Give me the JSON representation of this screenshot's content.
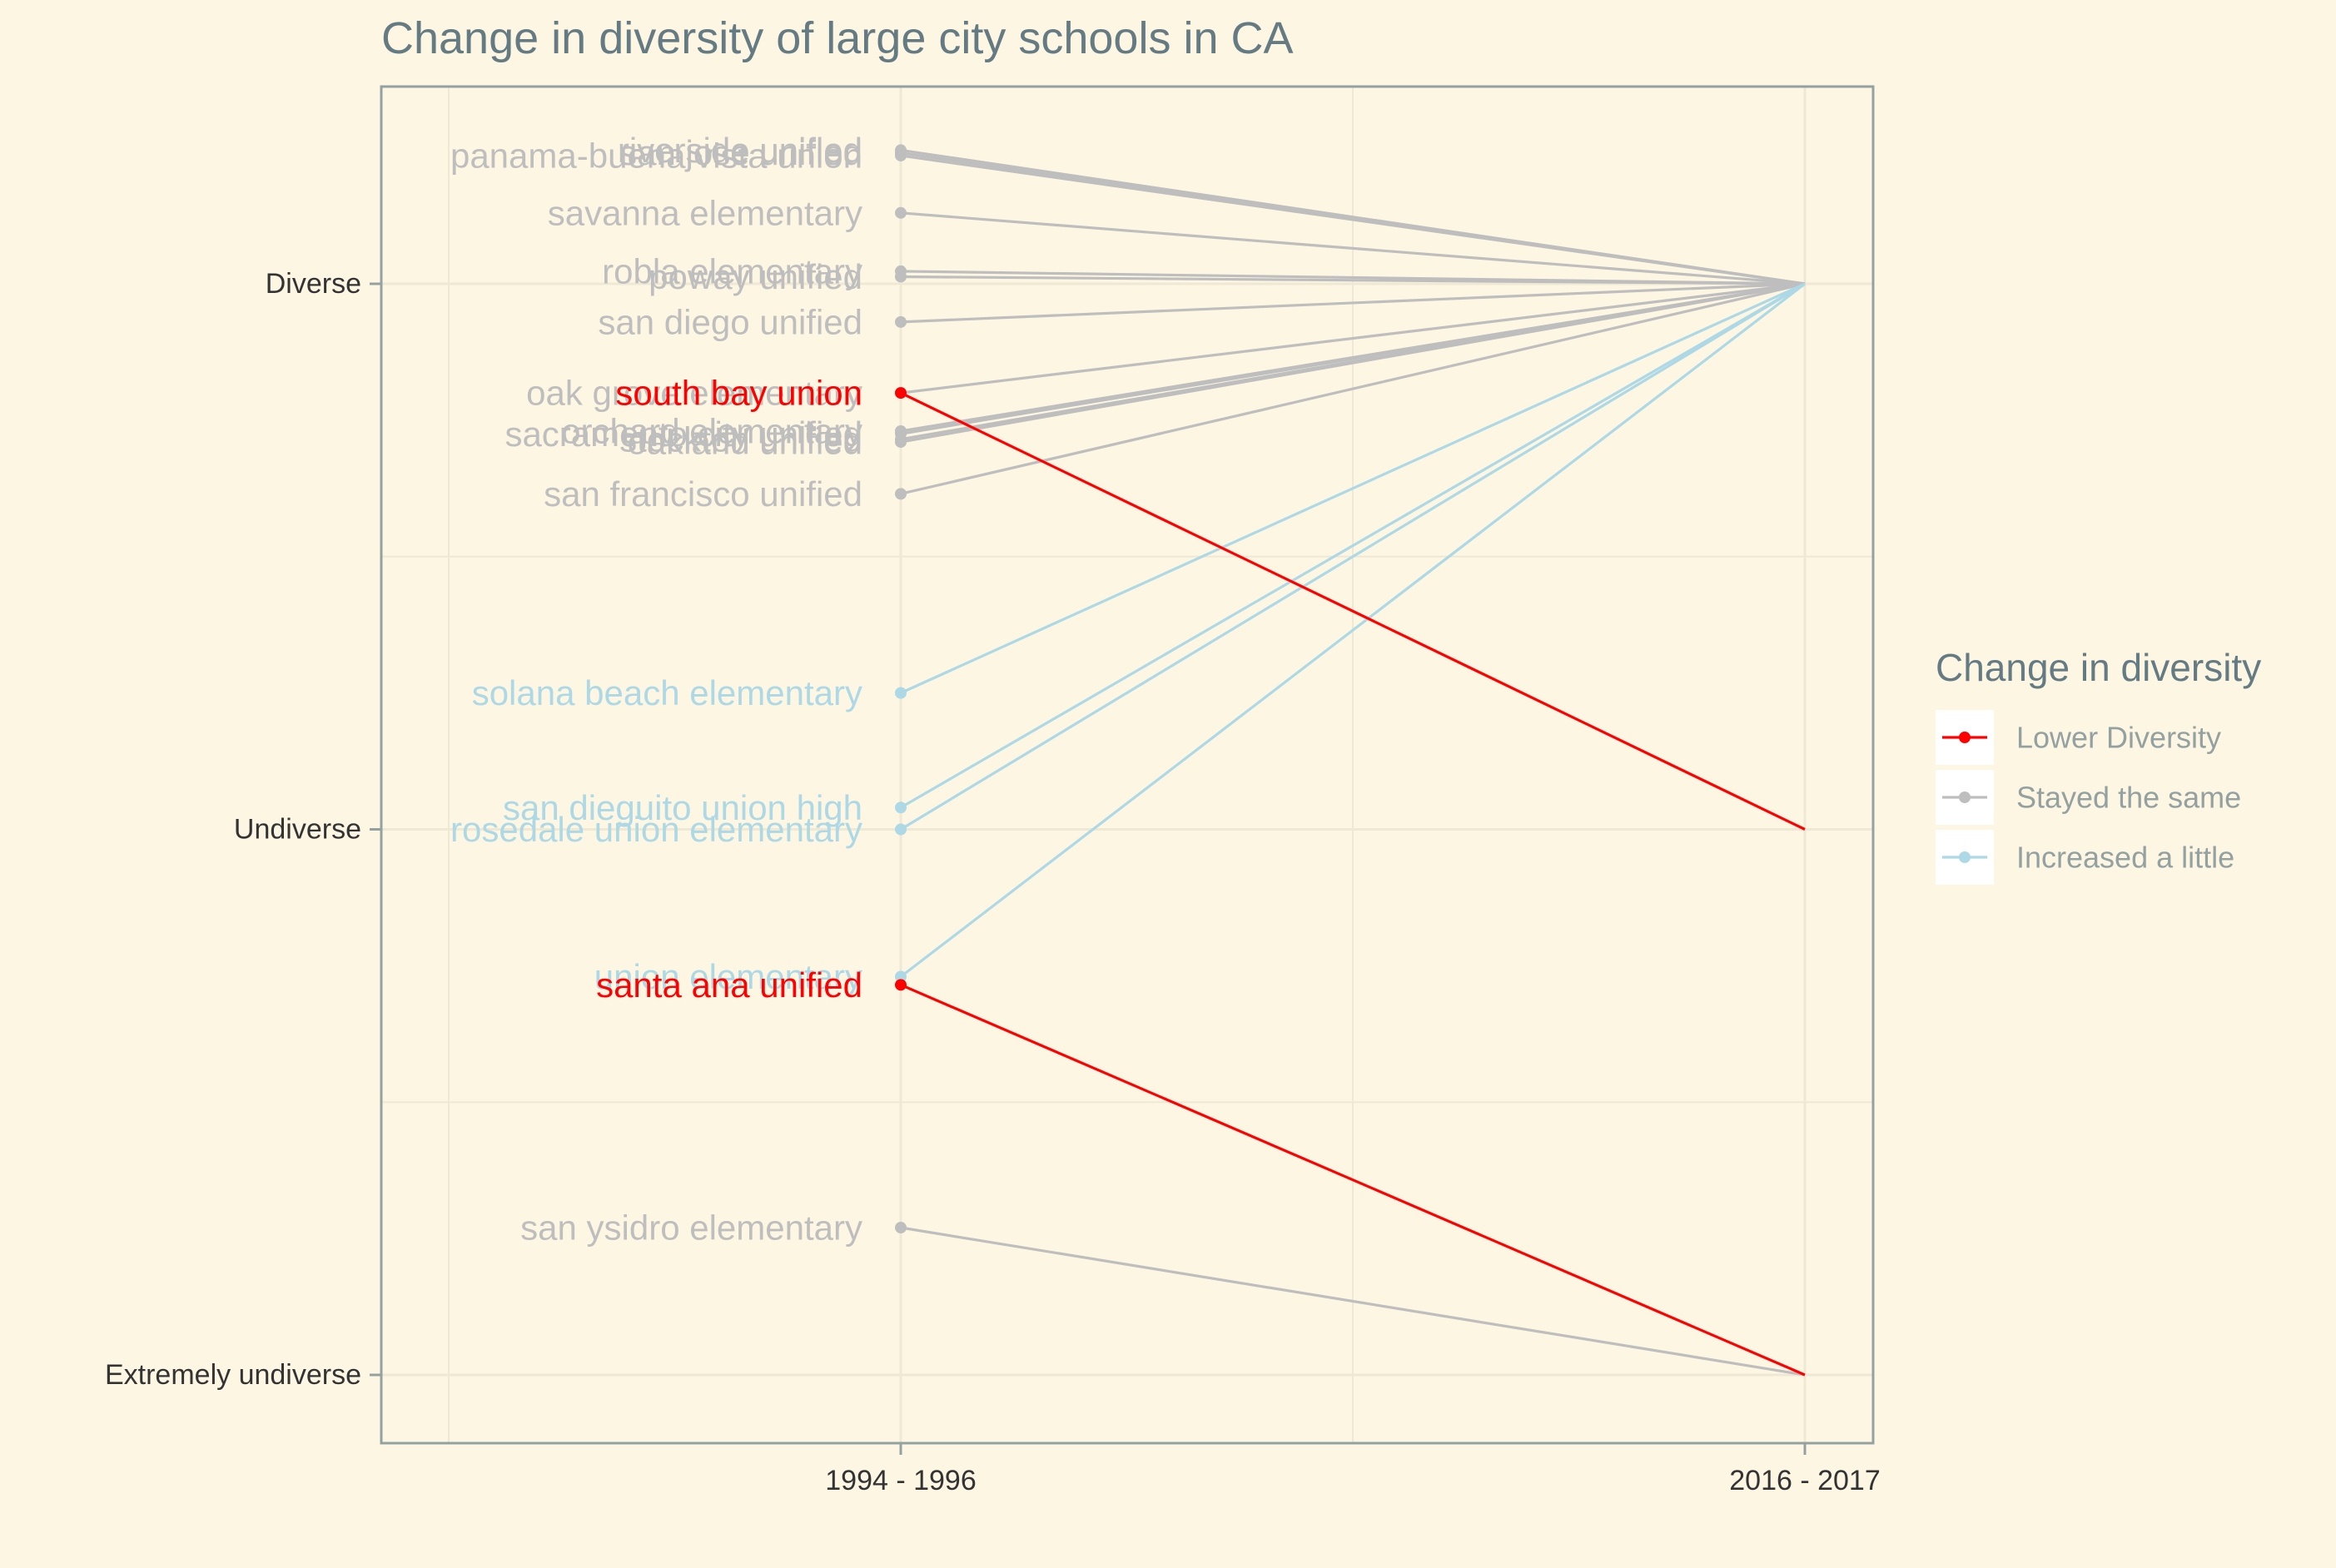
{
  "chart_data": {
    "type": "line",
    "title": "Change in diversity of large city schools in CA",
    "xlabel": "",
    "ylabel": "",
    "x_categories": [
      "1994 - 1996",
      "2016 - 2017"
    ],
    "y_categories": [
      "Extremely undiverse",
      "Undiverse",
      "Diverse"
    ],
    "ylim": [
      0.9,
      3.22
    ],
    "grid": true,
    "legend": {
      "title": "Change in diversity",
      "placement": "right",
      "entries": [
        {
          "key": "lower",
          "label": "Lower Diversity",
          "color": "#ff0000"
        },
        {
          "key": "same",
          "label": "Stayed the same",
          "color": "#bebebe"
        },
        {
          "key": "increased",
          "label": "Increased a little",
          "color": "#add8e6"
        }
      ]
    },
    "series": [
      {
        "name": "riverside unified",
        "group": "same",
        "y_start": 3.245,
        "y_end": 3.0
      },
      {
        "name": "san jose unified",
        "group": "same",
        "y_start": 3.24,
        "y_end": 3.0
      },
      {
        "name": "panama-buena vista union",
        "group": "same",
        "y_start": 3.235,
        "y_end": 3.0
      },
      {
        "name": "savanna elementary",
        "group": "same",
        "y_start": 3.13,
        "y_end": 3.0
      },
      {
        "name": "robla elementary",
        "group": "same",
        "y_start": 3.023,
        "y_end": 3.0
      },
      {
        "name": "poway unified",
        "group": "same",
        "y_start": 3.013,
        "y_end": 3.0
      },
      {
        "name": "san diego unified",
        "group": "same",
        "y_start": 2.93,
        "y_end": 3.0
      },
      {
        "name": "oak grove elementary",
        "group": "same",
        "y_start": 2.8,
        "y_end": 3.0
      },
      {
        "name": "south bay union",
        "group": "lower",
        "y_start": 2.8,
        "y_end": 2.0
      },
      {
        "name": "orchard elementary",
        "group": "same",
        "y_start": 2.73,
        "y_end": 3.0
      },
      {
        "name": "sacramento city unified",
        "group": "same",
        "y_start": 2.725,
        "y_end": 3.0
      },
      {
        "name": "stockton unified",
        "group": "same",
        "y_start": 2.715,
        "y_end": 3.0
      },
      {
        "name": "oakland unified",
        "group": "same",
        "y_start": 2.71,
        "y_end": 3.0
      },
      {
        "name": "san francisco unified",
        "group": "same",
        "y_start": 2.615,
        "y_end": 3.0
      },
      {
        "name": "solana beach elementary",
        "group": "increased",
        "y_start": 2.25,
        "y_end": 3.0
      },
      {
        "name": "san dieguito union high",
        "group": "increased",
        "y_start": 2.04,
        "y_end": 3.0
      },
      {
        "name": "rosedale union elementary",
        "group": "increased",
        "y_start": 2.0,
        "y_end": 3.0
      },
      {
        "name": "union elementary",
        "group": "increased",
        "y_start": 1.73,
        "y_end": 3.0
      },
      {
        "name": "santa ana unified",
        "group": "lower",
        "y_start": 1.715,
        "y_end": 1.0
      },
      {
        "name": "san ysidro elementary",
        "group": "same",
        "y_start": 1.27,
        "y_end": 1.0
      }
    ]
  },
  "colors": {
    "background": "#fdf6e3",
    "panel_border": "#93a1a1",
    "gridline": "#eee8d5",
    "title": "#657b83",
    "axis_text": "#333333"
  }
}
